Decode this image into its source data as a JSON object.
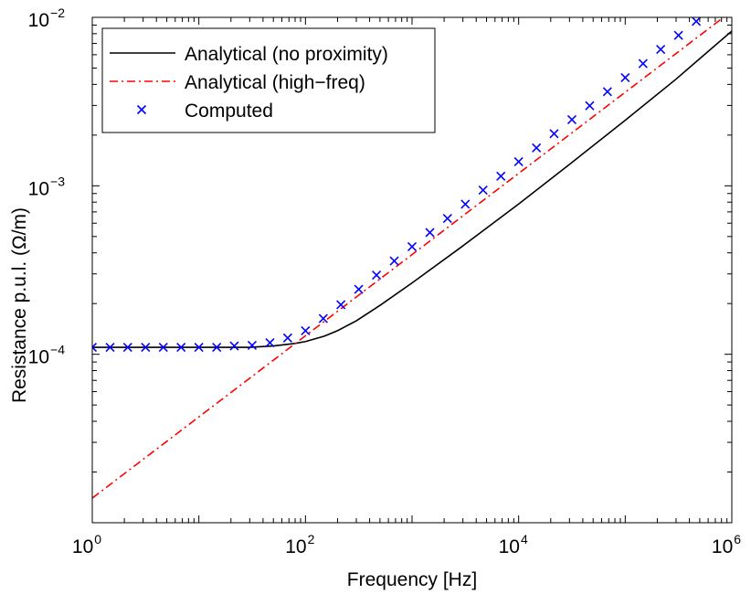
{
  "chart_data": {
    "type": "line",
    "xlabel": "Frequency [Hz]",
    "ylabel": "Resistance p.u.l. (Ω/m)",
    "x_scale": "log",
    "y_scale": "log",
    "xlim": [
      1,
      1000000
    ],
    "ylim": [
      1e-05,
      0.01
    ],
    "x_ticks": [
      {
        "value": 1,
        "base": "10",
        "exp": "0"
      },
      {
        "value": 100,
        "base": "10",
        "exp": "2"
      },
      {
        "value": 10000,
        "base": "10",
        "exp": "4"
      },
      {
        "value": 1000000,
        "base": "10",
        "exp": "6"
      }
    ],
    "y_ticks": [
      {
        "value": 0.0001,
        "base": "10",
        "exp": "−4"
      },
      {
        "value": 0.001,
        "base": "10",
        "exp": "−3"
      },
      {
        "value": 0.01,
        "base": "10",
        "exp": "−2"
      }
    ],
    "grid": false,
    "legend_position": "top-left",
    "series": [
      {
        "name": "Analytical (no proximity)",
        "style": "solid",
        "color": "#000000",
        "x": [
          1,
          10,
          30,
          50,
          80,
          100,
          150,
          200,
          300,
          500,
          1000,
          3000,
          10000,
          30000,
          100000,
          300000,
          1000000
        ],
        "y": [
          0.00011,
          0.00011,
          0.00011,
          0.000112,
          0.000116,
          0.000119,
          0.000128,
          0.000138,
          0.000158,
          0.000195,
          0.000265,
          0.00044,
          0.00078,
          0.00134,
          0.00245,
          0.0043,
          0.0083
        ]
      },
      {
        "name": "Analytical (high−freq)",
        "style": "dashdot",
        "color": "#ff0000",
        "x": [
          1,
          1000000
        ],
        "y": [
          1.4e-05,
          0.0109
        ]
      },
      {
        "name": "Computed",
        "style": "markers",
        "marker": "x",
        "color": "#0000ff",
        "x": [
          1,
          1.47,
          2.15,
          3.16,
          4.64,
          6.81,
          10,
          14.7,
          21.5,
          31.6,
          46.4,
          68.1,
          100,
          147,
          215,
          316,
          464,
          681,
          1000,
          1470,
          2150,
          3160,
          4640,
          6810,
          10000,
          14700,
          21500,
          31600,
          46400,
          68100,
          100000,
          147000,
          215000,
          316000,
          464000
        ],
        "y": [
          0.00011,
          0.00011,
          0.00011,
          0.00011,
          0.00011,
          0.00011,
          0.00011,
          0.00011,
          0.000112,
          0.000113,
          0.000117,
          0.000125,
          0.000138,
          0.000163,
          0.000197,
          0.000243,
          0.000295,
          0.000358,
          0.000435,
          0.000528,
          0.00064,
          0.000778,
          0.000943,
          0.00114,
          0.00139,
          0.00168,
          0.00204,
          0.00247,
          0.00299,
          0.00362,
          0.00439,
          0.00532,
          0.00645,
          0.00782,
          0.00947
        ]
      }
    ]
  }
}
